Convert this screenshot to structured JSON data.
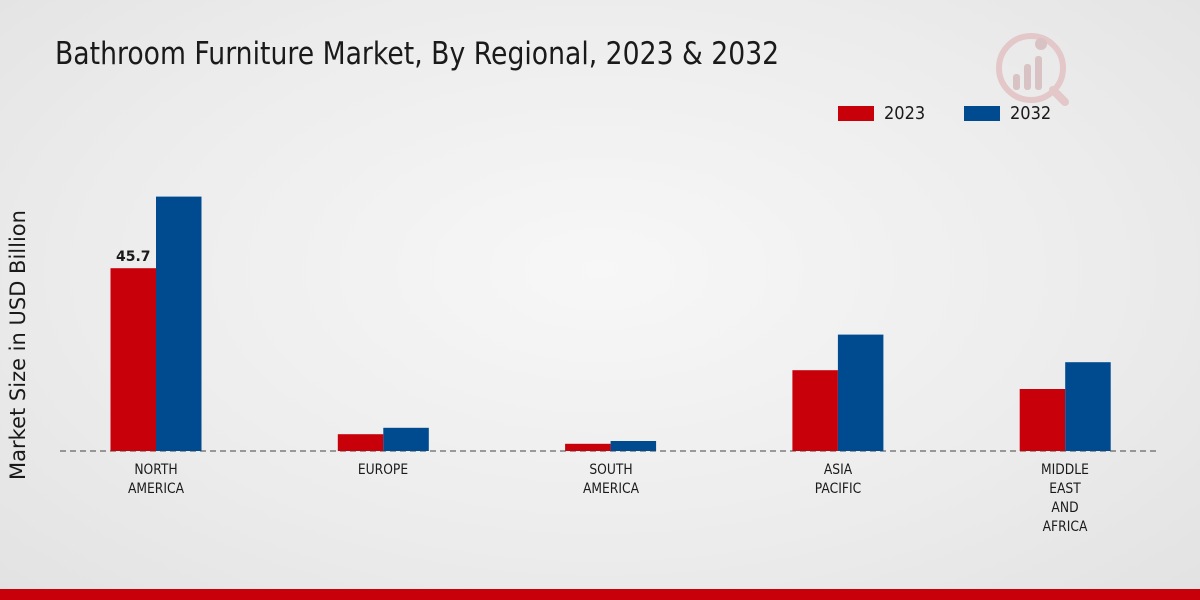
{
  "title": "Bathroom Furniture Market, By Regional, 2023 & 2032",
  "colors": {
    "series_2023": "#c8000a",
    "series_2032": "#004a8f",
    "footer": "#c8000a"
  },
  "icons": {
    "logo": "market-research-logo-icon"
  },
  "chart_data": {
    "type": "bar",
    "title": "Bathroom Furniture Market, By Regional, 2023 & 2032",
    "xlabel": "",
    "ylabel": "Market Size in USD Billion",
    "ylim": [
      0,
      100
    ],
    "grid": false,
    "legend_position": "top-right",
    "categories": [
      "NORTH\nAMERICA",
      "EUROPE",
      "SOUTH\nAMERICA",
      "ASIA\nPACIFIC",
      "MIDDLE\nEAST\nAND\nAFRICA"
    ],
    "series": [
      {
        "name": "2023",
        "values": [
          45.7,
          4.2,
          1.8,
          20.2,
          15.5
        ]
      },
      {
        "name": "2032",
        "values": [
          63.6,
          5.8,
          2.5,
          29.1,
          22.2
        ]
      }
    ],
    "data_labels": [
      {
        "series": 0,
        "category": 0,
        "text": "45.7"
      }
    ]
  }
}
